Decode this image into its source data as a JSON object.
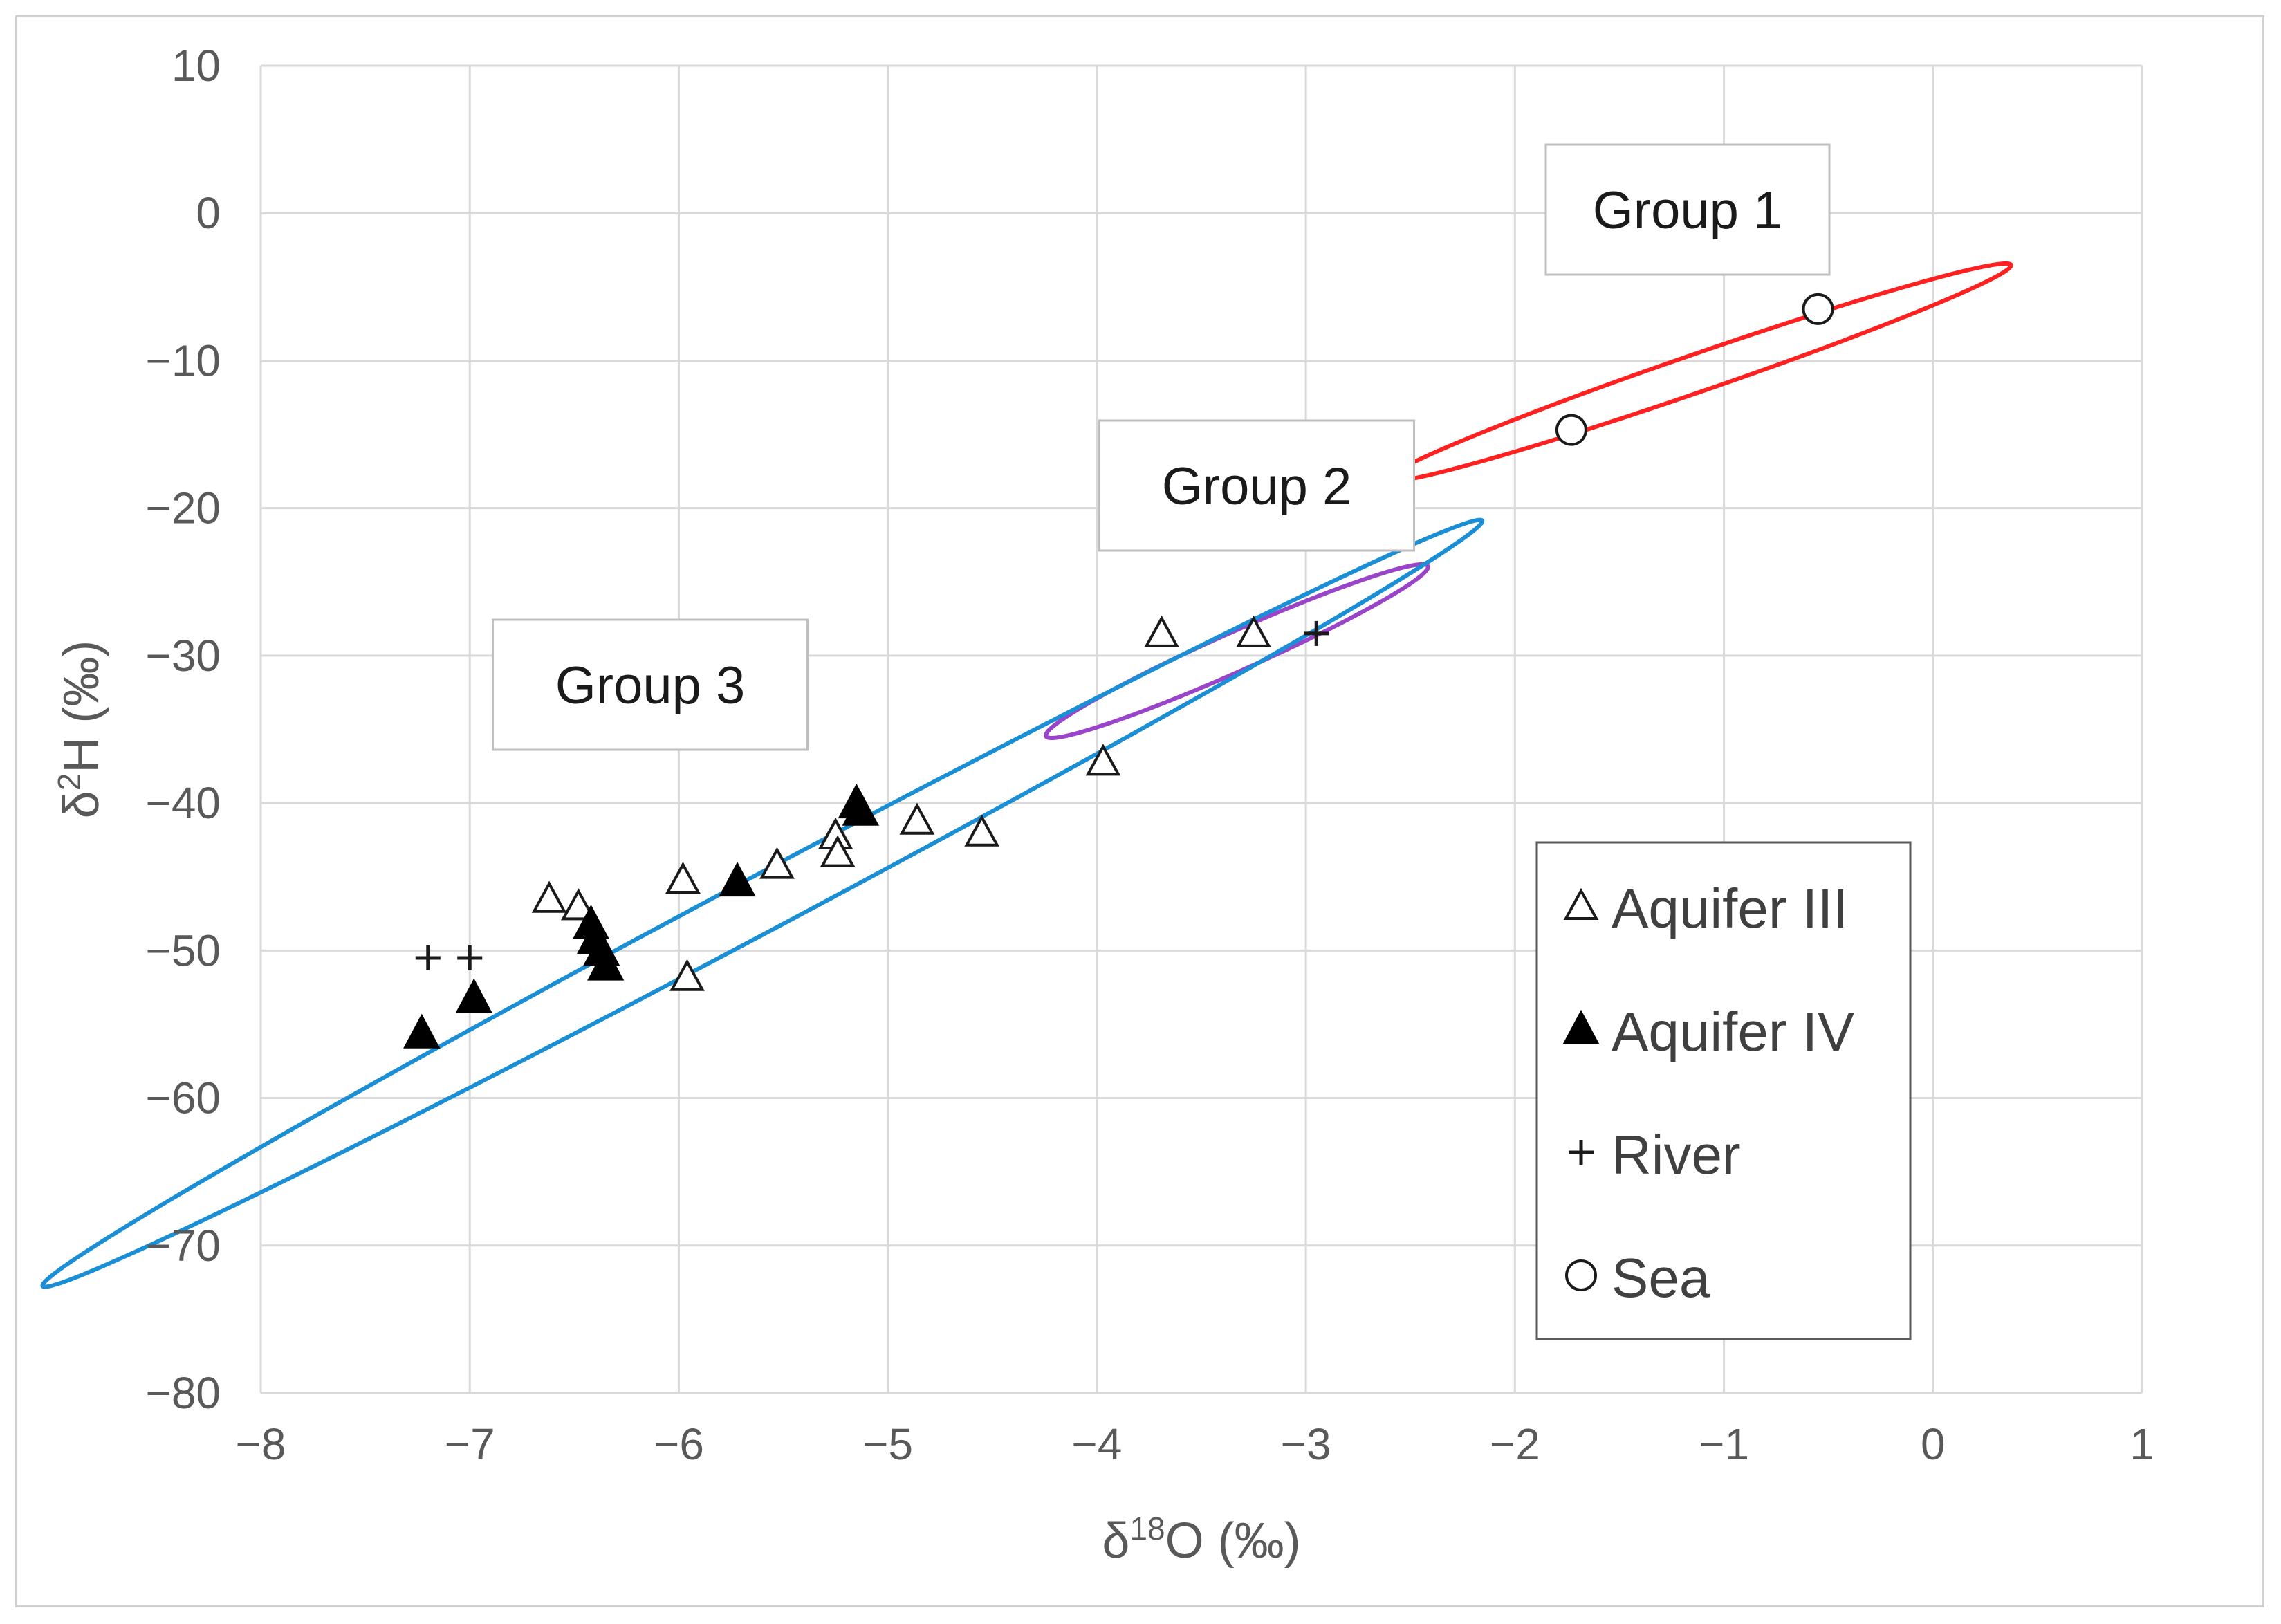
{
  "chart_data": {
    "type": "scatter",
    "xlabel": "δ18O (‰)",
    "xlabel_parts": {
      "symbol": "δ",
      "superscript": "18",
      "rest": "O (‰)"
    },
    "ylabel": "δ2H (‰)",
    "ylabel_parts": {
      "symbol": "δ",
      "superscript": "2",
      "rest": "H (‰)"
    },
    "xlim": [
      -8,
      1
    ],
    "ylim": [
      -80,
      10
    ],
    "xticks": [
      -8,
      -7,
      -6,
      -5,
      -4,
      -3,
      -2,
      -1,
      0,
      1
    ],
    "yticks": [
      10,
      0,
      -10,
      -20,
      -30,
      -40,
      -50,
      -60,
      -70,
      -80
    ],
    "xtick_labels": [
      "−8",
      "−7",
      "−6",
      "−5",
      "−4",
      "−3",
      "−2",
      "−1",
      "0",
      "1"
    ],
    "ytick_labels": [
      "10",
      "0",
      "−10",
      "−20",
      "−30",
      "−40",
      "−50",
      "−60",
      "−70",
      "−80"
    ],
    "grid": true,
    "legend_position": "bottom-right",
    "series": [
      {
        "name": "Aquifer III",
        "marker": "open-triangle",
        "points": [
          {
            "x": -6.62,
            "y": -46.5
          },
          {
            "x": -6.48,
            "y": -47.0
          },
          {
            "x": -5.98,
            "y": -45.2
          },
          {
            "x": -5.96,
            "y": -51.8
          },
          {
            "x": -5.53,
            "y": -44.2
          },
          {
            "x": -5.25,
            "y": -42.2
          },
          {
            "x": -5.24,
            "y": -43.4
          },
          {
            "x": -4.86,
            "y": -41.2
          },
          {
            "x": -4.55,
            "y": -42.0
          },
          {
            "x": -3.97,
            "y": -37.2
          },
          {
            "x": -3.69,
            "y": -28.5
          },
          {
            "x": -3.25,
            "y": -28.5
          }
        ]
      },
      {
        "name": "Aquifer IV",
        "marker": "filled-triangle",
        "points": [
          {
            "x": -7.23,
            "y": -55.6
          },
          {
            "x": -6.98,
            "y": -53.2
          },
          {
            "x": -6.42,
            "y": -48.2
          },
          {
            "x": -6.4,
            "y": -49.2
          },
          {
            "x": -6.37,
            "y": -50.0
          },
          {
            "x": -6.35,
            "y": -51.0
          },
          {
            "x": -5.72,
            "y": -45.3
          },
          {
            "x": -5.15,
            "y": -40.0
          },
          {
            "x": -5.13,
            "y": -40.5
          }
        ]
      },
      {
        "name": "River",
        "marker": "plus",
        "points": [
          {
            "x": -7.2,
            "y": -50.5
          },
          {
            "x": -7.0,
            "y": -50.5
          },
          {
            "x": -2.95,
            "y": -28.5
          }
        ]
      },
      {
        "name": "Sea",
        "marker": "open-circle",
        "points": [
          {
            "x": -1.73,
            "y": -14.7
          },
          {
            "x": -0.55,
            "y": -6.5
          }
        ]
      }
    ],
    "annotations": [
      {
        "label": "Group 1",
        "color": "#ff2020",
        "center": {
          "x": -1.12,
          "y": -10.8
        },
        "rx": 1.58,
        "ry": 3.65,
        "angle_deg": -19
      },
      {
        "label": "Group 2",
        "color": "#9a44c9",
        "center": {
          "x": -3.33,
          "y": -29.7
        },
        "rx": 1.0,
        "ry": 3.75,
        "angle_deg": -24
      },
      {
        "label": "Group 3",
        "color": "#1a8fd6",
        "center": {
          "x": -5.6,
          "y": -46.8
        },
        "rx": 3.9,
        "ry": 5.4,
        "angle_deg": -28
      }
    ],
    "legend": [
      "Aquifer III",
      "Aquifer IV",
      "River",
      "Sea"
    ]
  }
}
